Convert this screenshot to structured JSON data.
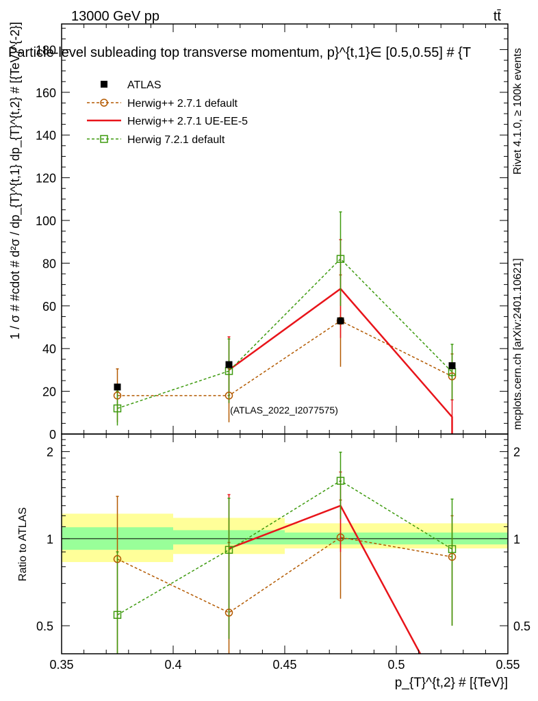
{
  "header": {
    "energy_label": "13000 GeV pp",
    "process_label": "tt̄",
    "title": "Particle-level subleading top transverse momentum, p}^{t,1}∈ [0.5,0.55] # {T"
  },
  "side_labels": {
    "rivet": "Rivet 4.1.0, ≥ 100k events",
    "mcplots": "mcplots.cern.ch [arXiv:2401.10621]"
  },
  "watermark": "(ATLAS_2022_I2077575)",
  "colors": {
    "atlas": "#000000",
    "h271_default": "#b35900",
    "h271_ueee5": "#e8141a",
    "h721_default": "#3d9a0e",
    "band_inner": "#99ff99",
    "band_outer": "#ffff99"
  },
  "legend": [
    {
      "label": "ATLAS"
    },
    {
      "label": "Herwig++ 2.7.1 default"
    },
    {
      "label": "Herwig++ 2.7.1 UE-EE-5"
    },
    {
      "label": "Herwig 7.2.1 default"
    }
  ],
  "chart_data": [
    {
      "type": "line",
      "panel": "main",
      "ylabel": "1 / σ # #cdot # d²σ / dp_{T}^{t,1} dp_{T}^{t,2} # [{TeV}^{-2}]",
      "xlim": [
        0.35,
        0.55
      ],
      "ylim": [
        0,
        192
      ],
      "y_ticks": [
        {
          "v": 0,
          "label": "0"
        },
        {
          "v": 20,
          "label": "20"
        },
        {
          "v": 40,
          "label": "40"
        },
        {
          "v": 60,
          "label": "60"
        },
        {
          "v": 80,
          "label": "80"
        },
        {
          "v": 100,
          "label": "100"
        },
        {
          "v": 120,
          "label": "120"
        },
        {
          "v": 140,
          "label": "140"
        },
        {
          "v": 160,
          "label": "160"
        },
        {
          "v": 180,
          "label": "180"
        }
      ],
      "x": [
        0.375,
        0.425,
        0.475,
        0.525
      ],
      "series": [
        {
          "key": "atlas",
          "name": "ATLAS",
          "values": [
            22,
            32.5,
            53,
            32
          ]
        },
        {
          "key": "h271_default",
          "name": "Herwig++ 2.7.1 default",
          "values": [
            18,
            18,
            53,
            27
          ],
          "err": [
            12.5,
            12.5,
            21.5,
            10.5
          ]
        },
        {
          "key": "h271_ueee5",
          "name": "Herwig++ 2.7.1 UE-EE-5",
          "values": [
            null,
            30,
            68,
            8
          ],
          "err": [
            null,
            15.5,
            23,
            8
          ]
        },
        {
          "key": "h721_default",
          "name": "Herwig 7.2.1 default",
          "values": [
            12,
            29.5,
            82,
            29
          ],
          "err": [
            8,
            15,
            22,
            13
          ]
        }
      ]
    },
    {
      "type": "line",
      "panel": "ratio",
      "ylabel": "Ratio to ATLAS",
      "xlabel": "p_{T}^{t,2} # [{TeV}]",
      "xlim": [
        0.35,
        0.55
      ],
      "ylim": [
        0.4,
        2.3
      ],
      "scale": "log",
      "x_ticks": [
        {
          "v": 0.35,
          "label": "0.35"
        },
        {
          "v": 0.4,
          "label": "0.4"
        },
        {
          "v": 0.45,
          "label": "0.45"
        },
        {
          "v": 0.5,
          "label": "0.5"
        },
        {
          "v": 0.55,
          "label": "0.55"
        }
      ],
      "y_ticks": [
        {
          "v": 0.5,
          "label": "0.5"
        },
        {
          "v": 1,
          "label": "1"
        },
        {
          "v": 2,
          "label": "2"
        }
      ],
      "bands": [
        {
          "x0": 0.35,
          "x1": 0.4,
          "inner": [
            0.915,
            1.095
          ],
          "outer": [
            0.83,
            1.22
          ]
        },
        {
          "x0": 0.4,
          "x1": 0.45,
          "inner": [
            0.955,
            1.07
          ],
          "outer": [
            0.885,
            1.18
          ]
        },
        {
          "x0": 0.45,
          "x1": 0.5,
          "inner": [
            0.955,
            1.05
          ],
          "outer": [
            0.925,
            1.13
          ]
        },
        {
          "x0": 0.5,
          "x1": 0.55,
          "inner": [
            0.955,
            1.05
          ],
          "outer": [
            0.925,
            1.13
          ]
        }
      ],
      "x": [
        0.375,
        0.425,
        0.475,
        0.525
      ],
      "series": [
        {
          "key": "h271_default",
          "name": "Herwig++ 2.7.1 default",
          "values": [
            0.85,
            0.555,
            1.01,
            0.865
          ],
          "err_lo": [
            0.4,
            0.4,
            0.62,
            0.5
          ],
          "err_hi": [
            1.4,
            0.97,
            1.36,
            1.2
          ]
        },
        {
          "key": "h271_ueee5",
          "name": "Herwig++ 2.7.1 UE-EE-5",
          "values": [
            null,
            0.925,
            1.3,
            0.25
          ],
          "err_lo": [
            null,
            0.45,
            0.9,
            null
          ],
          "err_hi": [
            null,
            1.42,
            1.7,
            null
          ]
        },
        {
          "key": "h721_default",
          "name": "Herwig 7.2.1 default",
          "values": [
            0.545,
            0.915,
            1.585,
            0.92
          ],
          "err_lo": [
            0.38,
            0.45,
            1.17,
            0.5
          ],
          "err_hi": [
            0.9,
            1.38,
            1.99,
            1.37
          ]
        }
      ]
    }
  ]
}
